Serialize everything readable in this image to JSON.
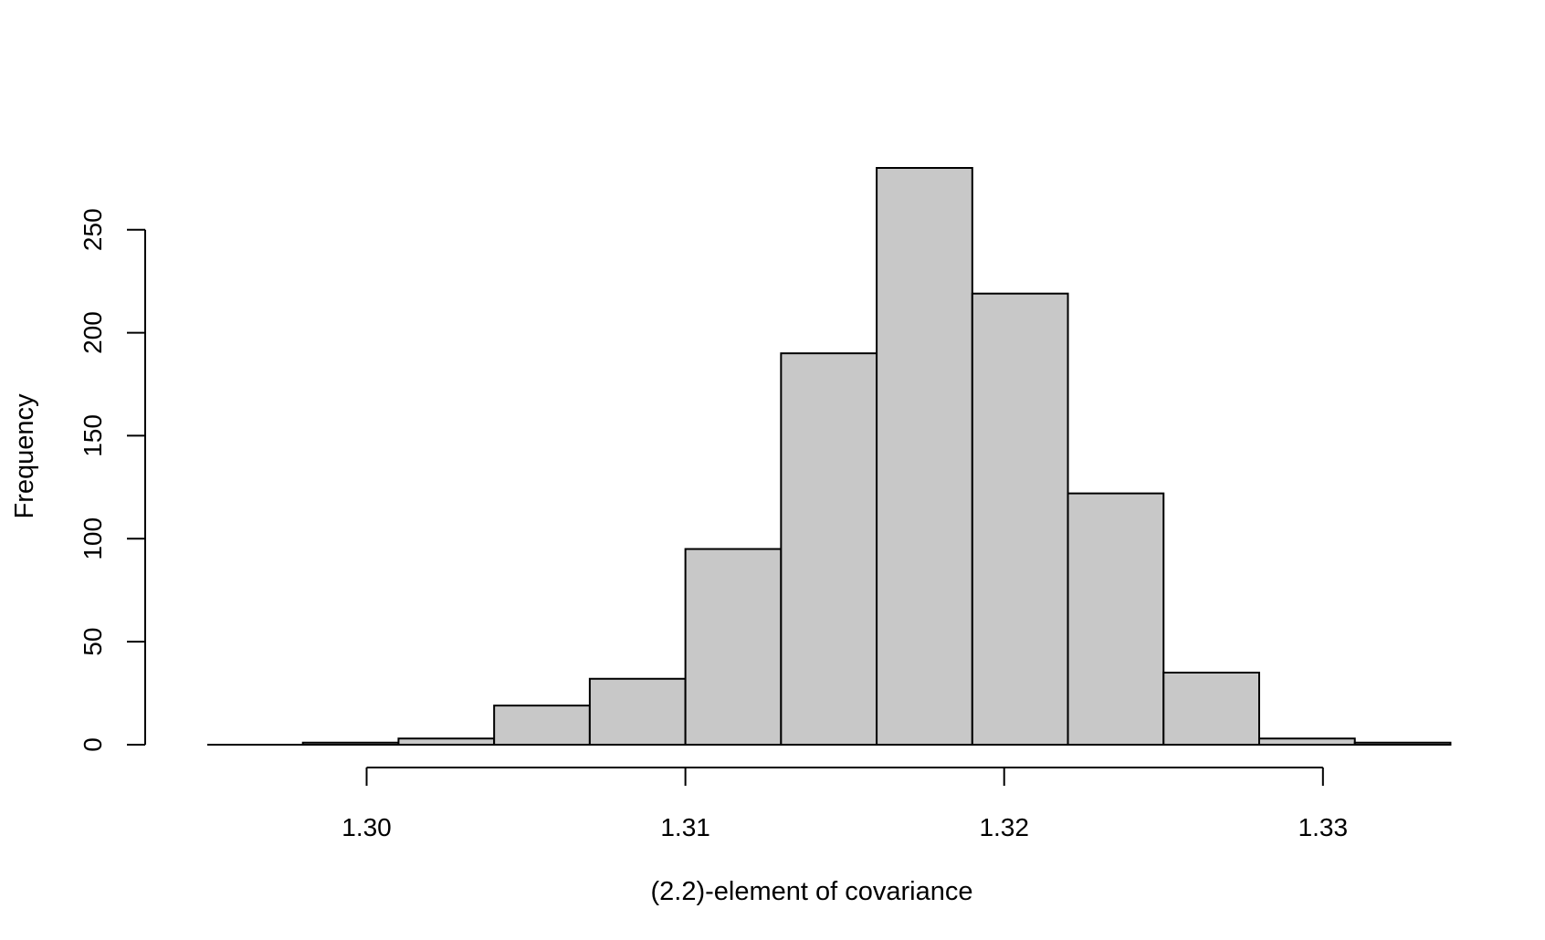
{
  "chart_data": {
    "type": "bar",
    "title": "",
    "xlabel": "(2.2)-element of covariance",
    "ylabel": "Frequency",
    "bar_color": "#c8c8c8",
    "edge_color": "#000000",
    "background": "#ffffff",
    "grid": false,
    "legend": "none",
    "xlim": [
      1.2946,
      1.3335
    ],
    "ylim": [
      0,
      280
    ],
    "x_ticks": [
      1.3,
      1.31,
      1.32,
      1.33
    ],
    "x_tick_labels": [
      "1.30",
      "1.31",
      "1.32",
      "1.33"
    ],
    "y_ticks": [
      0,
      50,
      100,
      150,
      200,
      250
    ],
    "y_tick_labels": [
      "0",
      "50",
      "100",
      "150",
      "200",
      "250"
    ],
    "bin_edges": [
      1.295,
      1.298,
      1.301,
      1.304,
      1.307,
      1.31,
      1.313,
      1.316,
      1.319,
      1.322,
      1.325,
      1.328,
      1.331,
      1.334
    ],
    "values": [
      0,
      1,
      3,
      19,
      32,
      95,
      190,
      280,
      219,
      122,
      35,
      3,
      1
    ]
  }
}
